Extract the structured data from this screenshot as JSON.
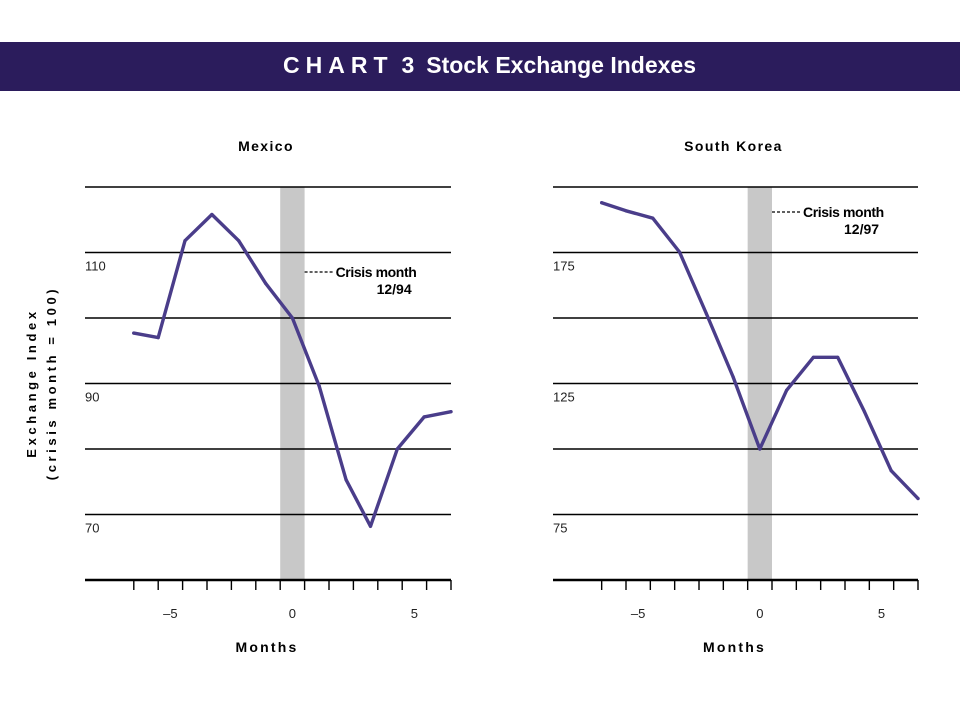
{
  "header": {
    "chart_word": "CHART",
    "chart_number": "3",
    "title": "Stock Exchange Indexes"
  },
  "ylabel_line1": "Exchange Index",
  "ylabel_line2": "(crisis month = 100)",
  "colors": {
    "banner": "#2b1c5c",
    "line": "#4a3d8a",
    "crisis_band": "#c8c8c8",
    "text": "#ffffff"
  },
  "chart_data": [
    {
      "type": "line",
      "title": "Mexico",
      "xlabel": "Months",
      "xlim": [
        -8.5,
        6.5
      ],
      "ylim": [
        60,
        120
      ],
      "y_grid": [
        70,
        80,
        90,
        100,
        110,
        120
      ],
      "y_tick_labels": [
        {
          "value": 110,
          "label": "110"
        },
        {
          "value": 90,
          "label": "90"
        },
        {
          "value": 70,
          "label": "70"
        }
      ],
      "x_tick_labels": [
        {
          "value": -5,
          "label": "–5"
        },
        {
          "value": 0,
          "label": "0"
        },
        {
          "value": 5,
          "label": "5"
        }
      ],
      "crisis_band": [
        -0.5,
        0.5
      ],
      "annotation": {
        "line1": "Crisis month",
        "line2": "12/94"
      },
      "series": [
        {
          "x": [
            -6.5,
            -5.5,
            -4.4,
            -3.3,
            -2.2,
            -1.1,
            0,
            1.1,
            2.2,
            3.2,
            4.3,
            5.4,
            6.5
          ],
          "y": [
            97.7,
            97.0,
            111.8,
            115.8,
            111.8,
            105.3,
            100.0,
            89.6,
            75.3,
            68.2,
            80.0,
            84.9,
            85.7
          ]
        }
      ]
    },
    {
      "type": "line",
      "title": "South Korea",
      "xlabel": "Months",
      "xlim": [
        -8.5,
        6.5
      ],
      "ylim": [
        50,
        200
      ],
      "y_grid": [
        75,
        100,
        125,
        150,
        175,
        200
      ],
      "y_tick_labels": [
        {
          "value": 175,
          "label": "175"
        },
        {
          "value": 125,
          "label": "125"
        },
        {
          "value": 75,
          "label": "75"
        }
      ],
      "x_tick_labels": [
        {
          "value": -5,
          "label": "–5"
        },
        {
          "value": 0,
          "label": "0"
        },
        {
          "value": 5,
          "label": "5"
        }
      ],
      "crisis_band": [
        -0.5,
        0.5
      ],
      "annotation": {
        "line1": "Crisis month",
        "line2": "12/97"
      },
      "series": [
        {
          "x": [
            -6.5,
            -5.5,
            -4.4,
            -3.3,
            -2.2,
            -1.1,
            0,
            1.1,
            2.2,
            3.2,
            4.3,
            5.4,
            6.5
          ],
          "y": [
            194.0,
            190.9,
            188.1,
            175.2,
            151.7,
            127.5,
            100.0,
            122.4,
            135.0,
            135.0,
            114.2,
            91.7,
            81.1
          ]
        }
      ]
    }
  ]
}
